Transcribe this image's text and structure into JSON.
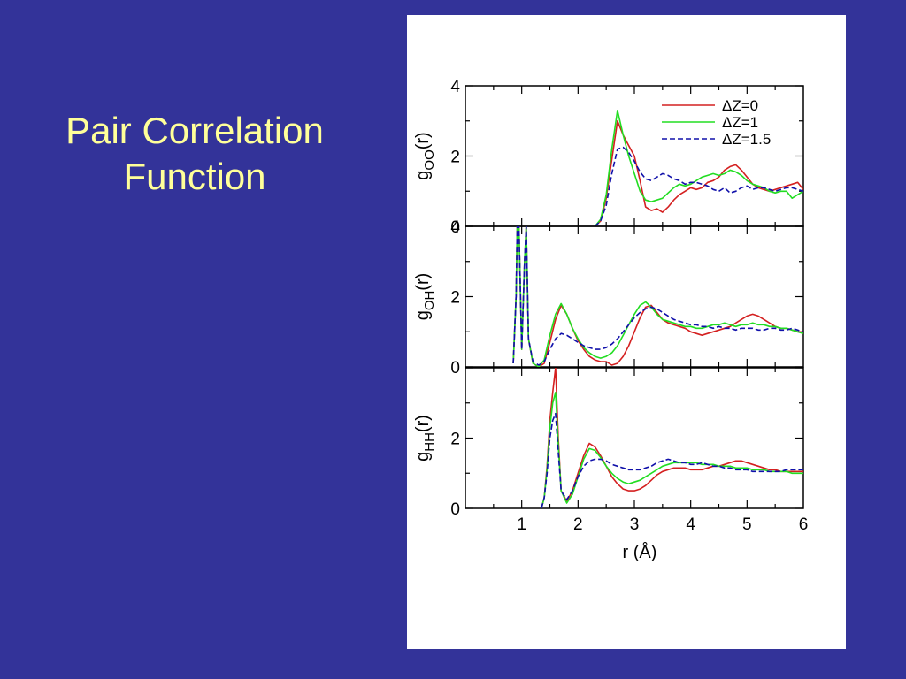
{
  "slide": {
    "title_line1": "Pair Correlation",
    "title_line2": "Function"
  },
  "chart_data": {
    "type": "line",
    "xlabel": "r (Å)",
    "xlim": [
      0,
      6
    ],
    "x_ticks": [
      "1",
      "2",
      "3",
      "4",
      "5",
      "6"
    ],
    "series_styles": [
      {
        "name": "ΔZ=0",
        "color": "#d42020",
        "dash": "solid"
      },
      {
        "name": "ΔZ=1",
        "color": "#22dd22",
        "dash": "solid"
      },
      {
        "name": "ΔZ=1.5",
        "color": "#1010aa",
        "dash": "dashed"
      }
    ],
    "legend": {
      "placement": "top-right"
    },
    "panels": [
      {
        "ylabel_main": "g",
        "ylabel_sub": "OO",
        "ylabel_end": "(r)",
        "ylim": [
          0,
          4
        ],
        "y_ticks": [
          "0",
          "2",
          "4"
        ],
        "series": [
          {
            "name": "ΔZ=0",
            "x": [
              2.3,
              2.4,
              2.5,
              2.6,
              2.7,
              2.8,
              2.9,
              3.0,
              3.1,
              3.2,
              3.3,
              3.4,
              3.5,
              3.6,
              3.7,
              3.8,
              3.9,
              4.0,
              4.1,
              4.2,
              4.3,
              4.4,
              4.5,
              4.6,
              4.7,
              4.8,
              4.9,
              5.0,
              5.1,
              5.2,
              5.3,
              5.4,
              5.5,
              5.6,
              5.7,
              5.8,
              5.9,
              6.0
            ],
            "y": [
              0.0,
              0.15,
              0.8,
              1.9,
              3.0,
              2.6,
              2.3,
              2.0,
              1.3,
              0.55,
              0.45,
              0.5,
              0.4,
              0.55,
              0.75,
              0.9,
              1.0,
              1.1,
              1.05,
              1.1,
              1.25,
              1.3,
              1.4,
              1.6,
              1.7,
              1.75,
              1.6,
              1.4,
              1.2,
              1.1,
              1.05,
              1.0,
              1.05,
              1.1,
              1.15,
              1.2,
              1.25,
              1.05
            ]
          },
          {
            "name": "ΔZ=1",
            "x": [
              2.3,
              2.4,
              2.5,
              2.6,
              2.7,
              2.8,
              2.9,
              3.0,
              3.1,
              3.2,
              3.3,
              3.4,
              3.5,
              3.6,
              3.7,
              3.8,
              3.9,
              4.0,
              4.1,
              4.2,
              4.3,
              4.4,
              4.5,
              4.6,
              4.7,
              4.8,
              4.9,
              5.0,
              5.1,
              5.2,
              5.3,
              5.4,
              5.5,
              5.6,
              5.7,
              5.8,
              5.9,
              6.0
            ],
            "y": [
              0.0,
              0.2,
              0.9,
              2.2,
              3.3,
              2.6,
              2.0,
              1.5,
              1.0,
              0.75,
              0.7,
              0.75,
              0.8,
              0.95,
              1.1,
              1.2,
              1.15,
              1.2,
              1.3,
              1.4,
              1.45,
              1.5,
              1.45,
              1.5,
              1.6,
              1.55,
              1.45,
              1.3,
              1.2,
              1.15,
              1.1,
              1.0,
              0.95,
              1.0,
              1.0,
              0.8,
              0.9,
              1.0
            ]
          },
          {
            "name": "ΔZ=1.5",
            "x": [
              2.3,
              2.4,
              2.5,
              2.6,
              2.7,
              2.8,
              2.9,
              3.0,
              3.1,
              3.2,
              3.3,
              3.4,
              3.5,
              3.6,
              3.7,
              3.8,
              3.9,
              4.0,
              4.1,
              4.2,
              4.3,
              4.4,
              4.5,
              4.6,
              4.7,
              4.8,
              4.9,
              5.0,
              5.1,
              5.2,
              5.3,
              5.4,
              5.5,
              5.6,
              5.7,
              5.8,
              5.9,
              6.0
            ],
            "y": [
              0.0,
              0.15,
              0.6,
              1.5,
              2.2,
              2.25,
              2.1,
              1.85,
              1.55,
              1.35,
              1.3,
              1.4,
              1.5,
              1.45,
              1.35,
              1.3,
              1.2,
              1.25,
              1.25,
              1.2,
              1.15,
              1.05,
              1.0,
              1.1,
              0.95,
              1.0,
              1.1,
              1.15,
              1.05,
              1.1,
              1.1,
              1.05,
              1.0,
              1.05,
              1.1,
              1.1,
              1.05,
              1.0
            ]
          }
        ]
      },
      {
        "ylabel_main": "g",
        "ylabel_sub": "OH",
        "ylabel_end": "(r)",
        "ylim": [
          0,
          4
        ],
        "y_ticks": [
          "0",
          "2",
          "4"
        ],
        "series": [
          {
            "name": "ΔZ=0",
            "x": [
              0.85,
              0.9,
              0.92,
              0.95,
              1.0,
              1.05,
              1.08,
              1.12,
              1.2,
              1.3,
              1.4,
              1.5,
              1.6,
              1.7,
              1.8,
              1.9,
              2.0,
              2.1,
              2.2,
              2.3,
              2.4,
              2.5,
              2.6,
              2.7,
              2.8,
              2.9,
              3.0,
              3.1,
              3.2,
              3.3,
              3.4,
              3.5,
              3.6,
              3.7,
              3.8,
              3.9,
              4.0,
              4.1,
              4.2,
              4.3,
              4.4,
              4.5,
              4.6,
              4.7,
              4.8,
              4.9,
              5.0,
              5.1,
              5.2,
              5.3,
              5.4,
              5.5,
              5.6,
              5.7,
              5.8,
              5.9,
              6.0
            ],
            "y": [
              0.1,
              2.0,
              4.0,
              4.0,
              0.5,
              3.0,
              4.0,
              0.8,
              0.1,
              0.0,
              0.1,
              0.7,
              1.35,
              1.75,
              1.5,
              1.1,
              0.75,
              0.5,
              0.3,
              0.2,
              0.15,
              0.15,
              0.05,
              0.1,
              0.3,
              0.6,
              1.0,
              1.4,
              1.7,
              1.75,
              1.55,
              1.35,
              1.25,
              1.2,
              1.15,
              1.1,
              1.0,
              0.95,
              0.9,
              0.95,
              1.0,
              1.05,
              1.1,
              1.15,
              1.25,
              1.35,
              1.45,
              1.5,
              1.45,
              1.35,
              1.25,
              1.15,
              1.1,
              1.1,
              1.05,
              1.0,
              1.0
            ]
          },
          {
            "name": "ΔZ=1",
            "x": [
              0.85,
              0.9,
              0.92,
              0.95,
              1.0,
              1.05,
              1.08,
              1.12,
              1.2,
              1.3,
              1.4,
              1.5,
              1.6,
              1.7,
              1.8,
              1.9,
              2.0,
              2.1,
              2.2,
              2.3,
              2.4,
              2.5,
              2.6,
              2.7,
              2.8,
              2.9,
              3.0,
              3.1,
              3.2,
              3.3,
              3.4,
              3.5,
              3.6,
              3.7,
              3.8,
              3.9,
              4.0,
              4.1,
              4.2,
              4.3,
              4.4,
              4.5,
              4.6,
              4.7,
              4.8,
              4.9,
              5.0,
              5.1,
              5.2,
              5.3,
              5.4,
              5.5,
              5.6,
              5.7,
              5.8,
              5.9,
              6.0
            ],
            "y": [
              0.1,
              2.0,
              4.0,
              4.0,
              0.5,
              3.0,
              4.0,
              0.8,
              0.1,
              0.0,
              0.2,
              0.9,
              1.5,
              1.8,
              1.5,
              1.1,
              0.8,
              0.55,
              0.4,
              0.3,
              0.25,
              0.3,
              0.4,
              0.6,
              0.9,
              1.2,
              1.5,
              1.75,
              1.85,
              1.7,
              1.5,
              1.35,
              1.3,
              1.25,
              1.2,
              1.15,
              1.15,
              1.1,
              1.1,
              1.15,
              1.2,
              1.2,
              1.25,
              1.2,
              1.15,
              1.2,
              1.2,
              1.25,
              1.2,
              1.2,
              1.15,
              1.15,
              1.1,
              1.1,
              1.05,
              1.0,
              0.95
            ]
          },
          {
            "name": "ΔZ=1.5",
            "x": [
              0.85,
              0.9,
              0.92,
              0.95,
              1.0,
              1.05,
              1.08,
              1.12,
              1.2,
              1.3,
              1.4,
              1.5,
              1.6,
              1.7,
              1.8,
              1.9,
              2.0,
              2.1,
              2.2,
              2.3,
              2.4,
              2.5,
              2.6,
              2.7,
              2.8,
              2.9,
              3.0,
              3.1,
              3.2,
              3.3,
              3.4,
              3.5,
              3.6,
              3.7,
              3.8,
              3.9,
              4.0,
              4.1,
              4.2,
              4.3,
              4.4,
              4.5,
              4.6,
              4.7,
              4.8,
              4.9,
              5.0,
              5.1,
              5.2,
              5.3,
              5.4,
              5.5,
              5.6,
              5.7,
              5.8,
              5.9,
              6.0
            ],
            "y": [
              0.1,
              2.0,
              4.0,
              4.0,
              0.5,
              3.0,
              4.0,
              0.8,
              0.15,
              0.05,
              0.15,
              0.5,
              0.8,
              0.95,
              0.9,
              0.8,
              0.7,
              0.6,
              0.55,
              0.5,
              0.5,
              0.55,
              0.65,
              0.8,
              1.0,
              1.2,
              1.4,
              1.55,
              1.65,
              1.7,
              1.65,
              1.55,
              1.45,
              1.35,
              1.3,
              1.25,
              1.2,
              1.2,
              1.15,
              1.15,
              1.1,
              1.15,
              1.1,
              1.1,
              1.05,
              1.1,
              1.1,
              1.1,
              1.05,
              1.05,
              1.1,
              1.1,
              1.05,
              1.05,
              1.1,
              1.05,
              1.0
            ]
          }
        ]
      },
      {
        "ylabel_main": "g",
        "ylabel_sub": "HH",
        "ylabel_end": "(r)",
        "ylim": [
          0,
          4
        ],
        "y_ticks": [
          "0",
          "2",
          ""
        ],
        "series": [
          {
            "name": "ΔZ=0",
            "x": [
              1.35,
              1.4,
              1.45,
              1.5,
              1.55,
              1.6,
              1.65,
              1.7,
              1.8,
              1.9,
              2.0,
              2.1,
              2.2,
              2.3,
              2.4,
              2.5,
              2.6,
              2.7,
              2.8,
              2.9,
              3.0,
              3.1,
              3.2,
              3.3,
              3.4,
              3.5,
              3.6,
              3.7,
              3.8,
              3.9,
              4.0,
              4.1,
              4.2,
              4.3,
              4.4,
              4.5,
              4.6,
              4.7,
              4.8,
              4.9,
              5.0,
              5.1,
              5.2,
              5.3,
              5.4,
              5.5,
              5.6,
              5.7,
              5.8,
              5.9,
              6.0
            ],
            "y": [
              0.0,
              0.3,
              1.2,
              2.5,
              3.3,
              4.0,
              2.0,
              0.5,
              0.2,
              0.5,
              1.0,
              1.5,
              1.85,
              1.75,
              1.5,
              1.2,
              0.9,
              0.7,
              0.55,
              0.5,
              0.5,
              0.55,
              0.65,
              0.8,
              0.95,
              1.05,
              1.1,
              1.15,
              1.15,
              1.15,
              1.1,
              1.1,
              1.1,
              1.15,
              1.2,
              1.2,
              1.25,
              1.3,
              1.35,
              1.35,
              1.3,
              1.25,
              1.2,
              1.15,
              1.1,
              1.1,
              1.05,
              1.05,
              1.05,
              1.05,
              1.05
            ]
          },
          {
            "name": "ΔZ=1",
            "x": [
              1.35,
              1.4,
              1.45,
              1.5,
              1.55,
              1.6,
              1.65,
              1.7,
              1.8,
              1.9,
              2.0,
              2.1,
              2.2,
              2.3,
              2.4,
              2.5,
              2.6,
              2.7,
              2.8,
              2.9,
              3.0,
              3.1,
              3.2,
              3.3,
              3.4,
              3.5,
              3.6,
              3.7,
              3.8,
              3.9,
              4.0,
              4.1,
              4.2,
              4.3,
              4.4,
              4.5,
              4.6,
              4.7,
              4.8,
              4.9,
              5.0,
              5.1,
              5.2,
              5.3,
              5.4,
              5.5,
              5.6,
              5.7,
              5.8,
              5.9,
              6.0
            ],
            "y": [
              0.0,
              0.3,
              1.1,
              2.3,
              3.0,
              3.3,
              1.8,
              0.5,
              0.15,
              0.4,
              0.9,
              1.4,
              1.7,
              1.65,
              1.45,
              1.2,
              1.0,
              0.85,
              0.75,
              0.7,
              0.75,
              0.8,
              0.9,
              1.0,
              1.1,
              1.2,
              1.25,
              1.3,
              1.3,
              1.3,
              1.3,
              1.3,
              1.25,
              1.25,
              1.25,
              1.2,
              1.2,
              1.2,
              1.15,
              1.15,
              1.15,
              1.1,
              1.1,
              1.1,
              1.05,
              1.05,
              1.05,
              1.05,
              1.0,
              1.0,
              1.0
            ]
          },
          {
            "name": "ΔZ=1.5",
            "x": [
              1.35,
              1.4,
              1.45,
              1.5,
              1.55,
              1.6,
              1.65,
              1.7,
              1.8,
              1.9,
              2.0,
              2.1,
              2.2,
              2.3,
              2.4,
              2.5,
              2.6,
              2.7,
              2.8,
              2.9,
              3.0,
              3.1,
              3.2,
              3.3,
              3.4,
              3.5,
              3.6,
              3.7,
              3.8,
              3.9,
              4.0,
              4.1,
              4.2,
              4.3,
              4.4,
              4.5,
              4.6,
              4.7,
              4.8,
              4.9,
              5.0,
              5.1,
              5.2,
              5.3,
              5.4,
              5.5,
              5.6,
              5.7,
              5.8,
              5.9,
              6.0
            ],
            "y": [
              0.0,
              0.3,
              1.0,
              2.0,
              2.5,
              2.7,
              1.6,
              0.5,
              0.25,
              0.5,
              0.9,
              1.2,
              1.35,
              1.4,
              1.4,
              1.35,
              1.25,
              1.2,
              1.15,
              1.1,
              1.1,
              1.1,
              1.15,
              1.2,
              1.3,
              1.35,
              1.4,
              1.35,
              1.3,
              1.3,
              1.25,
              1.25,
              1.3,
              1.25,
              1.2,
              1.2,
              1.15,
              1.15,
              1.1,
              1.1,
              1.1,
              1.05,
              1.05,
              1.05,
              1.05,
              1.05,
              1.05,
              1.1,
              1.1,
              1.1,
              1.1
            ]
          }
        ]
      }
    ]
  }
}
